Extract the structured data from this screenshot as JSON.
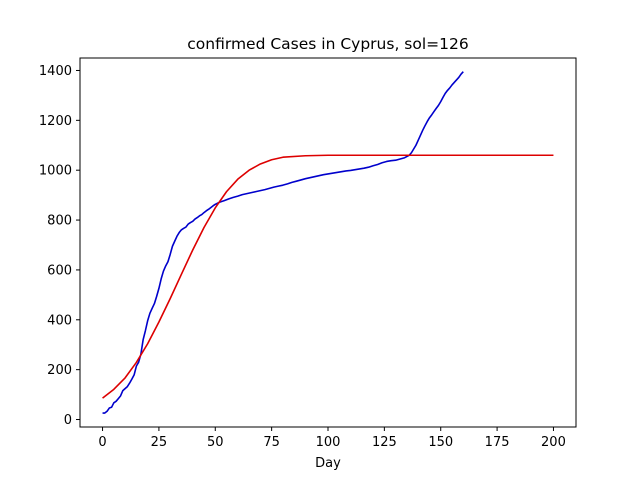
{
  "chart_data": {
    "type": "line",
    "title": "confirmed Cases in Cyprus, sol=126",
    "xlabel": "Day",
    "ylabel": "",
    "xlim": [
      -10,
      210
    ],
    "ylim": [
      -30,
      1450
    ],
    "xticks": [
      0,
      25,
      50,
      75,
      100,
      125,
      150,
      175,
      200
    ],
    "yticks": [
      0,
      200,
      400,
      600,
      800,
      1000,
      1200,
      1400
    ],
    "grid": false,
    "legend": "none",
    "series": [
      {
        "color": "#0000cc",
        "style": "line",
        "x": [
          0,
          1,
          2,
          3,
          4,
          5,
          6,
          7,
          8,
          9,
          10,
          11,
          12,
          13,
          14,
          15,
          16,
          17,
          18,
          19,
          20,
          21,
          22,
          23,
          24,
          25,
          26,
          27,
          28,
          29,
          30,
          31,
          32,
          33,
          34,
          35,
          36,
          37,
          38,
          39,
          40,
          41,
          42,
          43,
          44,
          45,
          46,
          47,
          48,
          49,
          50,
          52,
          54,
          56,
          58,
          60,
          62,
          64,
          66,
          68,
          70,
          72,
          74,
          76,
          78,
          80,
          82,
          84,
          86,
          88,
          90,
          92,
          94,
          96,
          98,
          100,
          102,
          104,
          106,
          108,
          110,
          112,
          114,
          116,
          118,
          120,
          122,
          124,
          126,
          128,
          130,
          132,
          134,
          136,
          137,
          138,
          139,
          140,
          141,
          142,
          143,
          144,
          145,
          146,
          147,
          148,
          149,
          150,
          151,
          152,
          153,
          154,
          155,
          156,
          157,
          158,
          159,
          160
        ],
        "y": [
          26,
          26,
          33,
          46,
          49,
          67,
          73,
          84,
          95,
          116,
          124,
          132,
          146,
          162,
          179,
          214,
          230,
          262,
          320,
          356,
          396,
          426,
          446,
          465,
          494,
          526,
          564,
          595,
          616,
          633,
          662,
          695,
          715,
          735,
          750,
          761,
          767,
          772,
          784,
          790,
          795,
          804,
          810,
          817,
          822,
          830,
          837,
          843,
          850,
          857,
          863,
          872,
          878,
          885,
          891,
          896,
          902,
          906,
          910,
          914,
          918,
          922,
          927,
          932,
          936,
          940,
          945,
          951,
          956,
          961,
          966,
          970,
          974,
          978,
          982,
          985,
          988,
          991,
          994,
          997,
          999,
          1002,
          1005,
          1008,
          1012,
          1018,
          1023,
          1030,
          1035,
          1038,
          1040,
          1045,
          1050,
          1060,
          1070,
          1085,
          1100,
          1120,
          1140,
          1160,
          1178,
          1195,
          1210,
          1222,
          1235,
          1248,
          1260,
          1275,
          1292,
          1308,
          1320,
          1330,
          1342,
          1352,
          1362,
          1372,
          1385,
          1395
        ]
      },
      {
        "color": "#dd0000",
        "style": "line",
        "x": [
          0,
          5,
          10,
          15,
          20,
          25,
          30,
          35,
          40,
          45,
          50,
          55,
          60,
          65,
          70,
          75,
          80,
          90,
          100,
          110,
          120,
          130,
          140,
          150,
          160,
          170,
          180,
          190,
          200
        ],
        "y": [
          86,
          121,
          167,
          229,
          304,
          391,
          485,
          583,
          680,
          770,
          849,
          914,
          964,
          1000,
          1025,
          1042,
          1052,
          1058,
          1060,
          1060,
          1060,
          1060,
          1060,
          1060,
          1060,
          1060,
          1060,
          1060,
          1060
        ]
      }
    ]
  }
}
